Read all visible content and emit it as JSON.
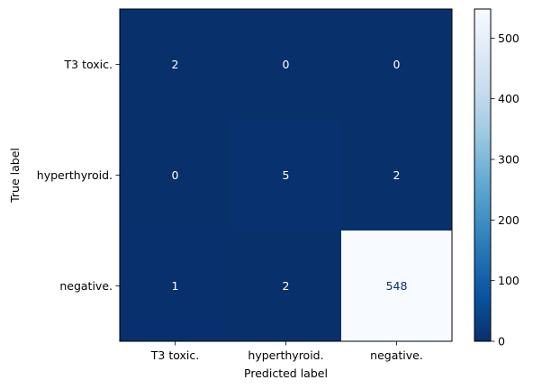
{
  "chart_data": {
    "type": "heatmap",
    "xlabel": "Predicted label",
    "ylabel": "True label",
    "x_categories": [
      "T3 toxic.",
      "hyperthyroid.",
      "negative."
    ],
    "y_categories": [
      "T3 toxic.",
      "hyperthyroid.",
      "negative."
    ],
    "values": [
      [
        2,
        0,
        0
      ],
      [
        0,
        5,
        2
      ],
      [
        1,
        2,
        548
      ]
    ],
    "colormap": "Blues_r",
    "colorbar": {
      "min": 0,
      "max": 548,
      "ticks": [
        0,
        100,
        200,
        300,
        400,
        500
      ]
    },
    "colors": {
      "low": "#08306b",
      "high": "#f7fbff",
      "text_on_dark": "#ffffff",
      "text_on_light": "#08306b"
    }
  }
}
